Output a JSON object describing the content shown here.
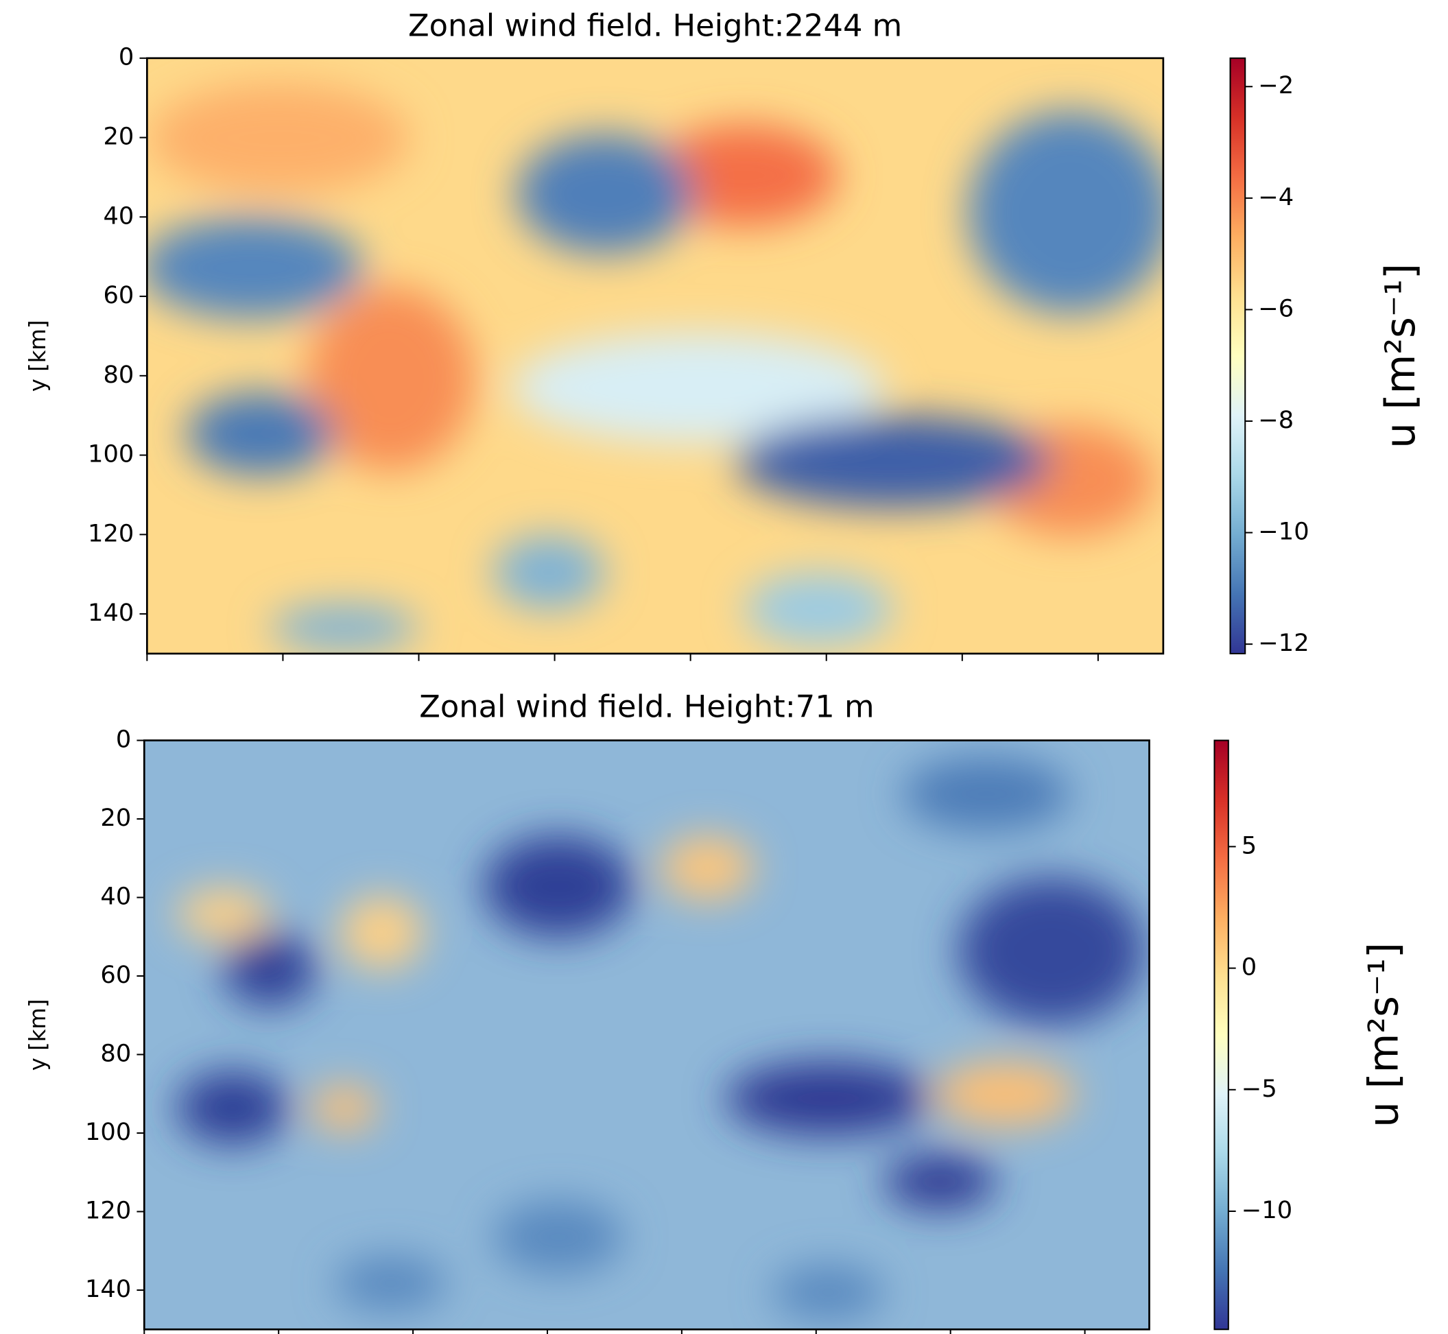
{
  "chart_data": [
    {
      "type": "heatmap",
      "title": "Zonal wind field. Height:2244 m",
      "ylabel": "y [km]",
      "ylim": [
        150,
        0
      ],
      "yticks": [
        0,
        20,
        40,
        60,
        80,
        100,
        120,
        140
      ],
      "colormap": "RdYlBu_r",
      "colorbar_label": "u [m²s⁻¹]",
      "clim": [
        -12.17,
        -1.49
      ],
      "colorbar_ticks": [
        {
          "value": -2,
          "label": "−2"
        },
        {
          "value": -4,
          "label": "−4"
        },
        {
          "value": -6,
          "label": "−6"
        },
        {
          "value": -8,
          "label": "−8"
        },
        {
          "value": -10,
          "label": "−10"
        },
        {
          "value": -12,
          "label": "−12"
        }
      ]
    },
    {
      "type": "heatmap",
      "title": "Zonal wind field. Height:71 m",
      "ylabel": "y [km]",
      "ylim": [
        150,
        0
      ],
      "yticks": [
        0,
        20,
        40,
        60,
        80,
        100,
        120,
        140
      ],
      "colormap": "RdYlBu_r",
      "colorbar_label": "u [m²s⁻¹]",
      "clim": [
        -14.86,
        9.37
      ],
      "colorbar_ticks": [
        {
          "value": 5,
          "label": "5"
        },
        {
          "value": 0,
          "label": "0"
        },
        {
          "value": -5,
          "label": "−5"
        },
        {
          "value": -10,
          "label": "−10"
        }
      ]
    }
  ]
}
